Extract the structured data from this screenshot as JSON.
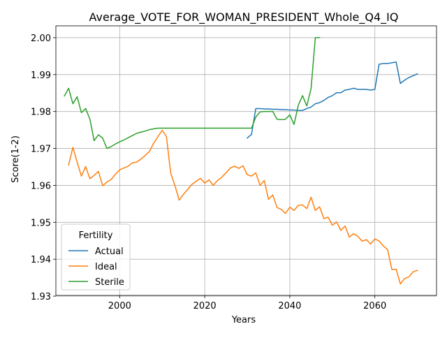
{
  "chart_data": {
    "type": "line",
    "title": "Average_VOTE_FOR_WOMAN_PRESIDENT_Whole_Q4_IQ",
    "xlabel": "Years",
    "ylabel": "Score(1-2)",
    "xlim": [
      1985,
      2074.5
    ],
    "ylim": [
      1.9302,
      2.0032
    ],
    "xticks": [
      2000,
      2020,
      2040,
      2060
    ],
    "yticks": [
      1.93,
      1.94,
      1.95,
      1.96,
      1.97,
      1.98,
      1.99,
      2.0
    ],
    "ytick_labels": [
      "1.93",
      "1.94",
      "1.95",
      "1.96",
      "1.97",
      "1.98",
      "1.99",
      "2.00"
    ],
    "grid": true,
    "legend": {
      "title": "Fertility",
      "placement": "bottom-left"
    },
    "series": [
      {
        "name": "Actual",
        "color": "#1f77b4",
        "x": [
          2030,
          2031,
          2032,
          2033,
          2034,
          2035,
          2036,
          2037,
          2038,
          2039,
          2040,
          2041,
          2042,
          2043,
          2044,
          2045,
          2046,
          2047,
          2048,
          2049,
          2050,
          2051,
          2052,
          2053,
          2054,
          2055,
          2056,
          2057,
          2058,
          2059,
          2060,
          2061,
          2062,
          2063,
          2064,
          2065,
          2066,
          2067,
          2068,
          2069,
          2070
        ],
        "y": [
          1.9728,
          1.9738,
          1.9808,
          1.9808,
          1.9807,
          1.9807,
          1.9806,
          1.9806,
          1.9805,
          1.9805,
          1.9804,
          1.9804,
          1.9803,
          1.9803,
          1.9808,
          1.9812,
          1.9821,
          1.9824,
          1.983,
          1.9838,
          1.9843,
          1.9851,
          1.9851,
          1.9858,
          1.986,
          1.9863,
          1.986,
          1.986,
          1.986,
          1.9858,
          1.986,
          1.9928,
          1.993,
          1.993,
          1.9932,
          1.9934,
          1.9876,
          1.9885,
          1.9892,
          1.9897,
          1.9902
        ]
      },
      {
        "name": "Ideal",
        "color": "#ff7f0e",
        "x": [
          1988,
          1989,
          1990,
          1991,
          1992,
          1993,
          1994,
          1995,
          1996,
          1997,
          1998,
          1999,
          2000,
          2001,
          2002,
          2003,
          2004,
          2005,
          2006,
          2007,
          2008,
          2009,
          2010,
          2011,
          2012,
          2013,
          2014,
          2015,
          2016,
          2017,
          2018,
          2019,
          2020,
          2021,
          2022,
          2023,
          2024,
          2025,
          2026,
          2027,
          2028,
          2029,
          2030,
          2031,
          2032,
          2033,
          2034,
          2035,
          2036,
          2037,
          2038,
          2039,
          2040,
          2041,
          2042,
          2043,
          2044,
          2045,
          2046,
          2047,
          2048,
          2049,
          2050,
          2051,
          2052,
          2053,
          2054,
          2055,
          2056,
          2057,
          2058,
          2059,
          2060,
          2061,
          2062,
          2063,
          2064,
          2065,
          2066,
          2067,
          2068,
          2069,
          2070
        ],
        "y": [
          1.9655,
          1.9703,
          1.9663,
          1.9625,
          1.9651,
          1.9618,
          1.9627,
          1.9638,
          1.9599,
          1.9609,
          1.9616,
          1.963,
          1.9642,
          1.9647,
          1.9652,
          1.9661,
          1.9663,
          1.9671,
          1.9681,
          1.9692,
          1.9714,
          1.9732,
          1.9749,
          1.9732,
          1.9633,
          1.9599,
          1.956,
          1.9576,
          1.9589,
          1.9603,
          1.9611,
          1.9619,
          1.9606,
          1.9615,
          1.96,
          1.9613,
          1.9622,
          1.9634,
          1.9647,
          1.9652,
          1.9646,
          1.9653,
          1.9629,
          1.9625,
          1.9634,
          1.96,
          1.9613,
          1.9562,
          1.9574,
          1.954,
          1.9535,
          1.9524,
          1.9541,
          1.9532,
          1.9546,
          1.9547,
          1.9537,
          1.9568,
          1.9532,
          1.9542,
          1.951,
          1.9514,
          1.9492,
          1.9501,
          1.9478,
          1.949,
          1.946,
          1.9469,
          1.9462,
          1.9449,
          1.9453,
          1.9441,
          1.9455,
          1.9449,
          1.9436,
          1.9426,
          1.9372,
          1.9373,
          1.9333,
          1.9348,
          1.9352,
          1.9366,
          1.937
        ]
      },
      {
        "name": "Sterile",
        "color": "#2ca02c",
        "x": [
          1987,
          1988,
          1989,
          1990,
          1991,
          1992,
          1993,
          1994,
          1995,
          1996,
          1997,
          1998,
          1999,
          2000,
          2001,
          2002,
          2003,
          2004,
          2005,
          2006,
          2007,
          2008,
          2009,
          2010,
          2011,
          2012,
          2013,
          2014,
          2015,
          2016,
          2017,
          2018,
          2019,
          2020,
          2021,
          2022,
          2023,
          2024,
          2025,
          2026,
          2027,
          2028,
          2029,
          2030,
          2031,
          2032,
          2033,
          2034,
          2035,
          2036,
          2037,
          2038,
          2039,
          2040,
          2041,
          2042,
          2043,
          2044,
          2045,
          2046,
          2047
        ],
        "y": [
          1.9842,
          1.9863,
          1.9821,
          1.984,
          1.9797,
          1.9808,
          1.9779,
          1.9721,
          1.9737,
          1.9728,
          1.97,
          1.9705,
          1.9712,
          1.9718,
          1.9723,
          1.9729,
          1.9735,
          1.9741,
          1.9744,
          1.9747,
          1.9751,
          1.9753,
          1.9755,
          1.9755,
          1.9755,
          1.9755,
          1.9755,
          1.9755,
          1.9755,
          1.9755,
          1.9755,
          1.9755,
          1.9755,
          1.9755,
          1.9755,
          1.9755,
          1.9755,
          1.9755,
          1.9755,
          1.9755,
          1.9755,
          1.9755,
          1.9755,
          1.9755,
          1.9755,
          1.9785,
          1.9799,
          1.98,
          1.98,
          1.98,
          1.9779,
          1.9778,
          1.9779,
          1.9791,
          1.9765,
          1.9817,
          1.9843,
          1.9815,
          1.9862,
          2.0,
          2.0
        ]
      }
    ]
  }
}
